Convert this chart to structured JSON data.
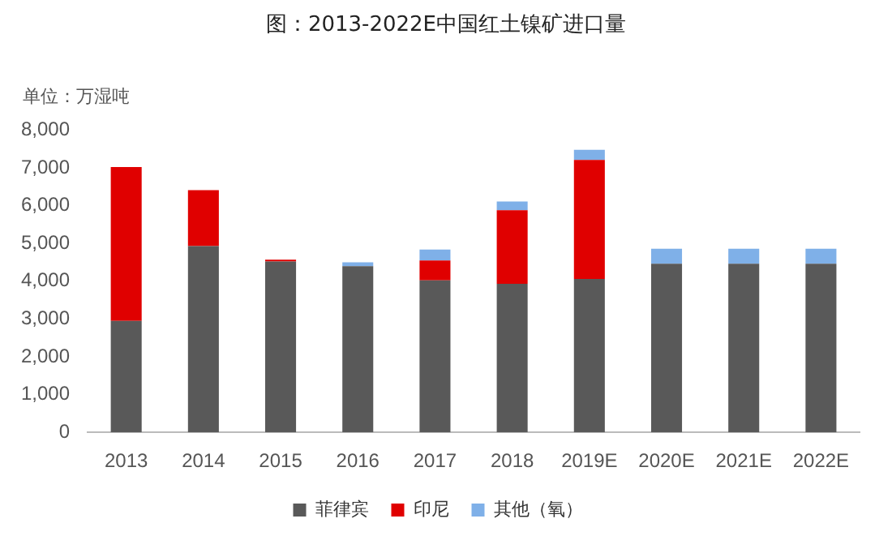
{
  "chart_data": {
    "type": "bar",
    "title": "图：2013-2022E中国红土镍矿进口量",
    "ylabel": "单位：万湿吨",
    "categories": [
      "2013",
      "2014",
      "2015",
      "2016",
      "2017",
      "2018",
      "2019E",
      "2020E",
      "2021E",
      "2022E"
    ],
    "series": [
      {
        "name": "菲律宾",
        "color": "#595959",
        "values": [
          2950,
          4930,
          4520,
          4400,
          4020,
          3930,
          4060,
          4460,
          4460,
          4460
        ]
      },
      {
        "name": "印尼",
        "color": "#e00000",
        "values": [
          4070,
          1480,
          50,
          0,
          530,
          1950,
          3150,
          0,
          0,
          0
        ]
      },
      {
        "name": "其他（氧）",
        "color": "#7fb0e8",
        "values": [
          0,
          0,
          0,
          100,
          290,
          230,
          270,
          400,
          400,
          400
        ]
      }
    ],
    "stacked": true,
    "ylim": [
      0,
      8000
    ],
    "yticks": [
      0,
      {
        "value": 1000,
        "label": "1,000"
      },
      {
        "value": 2000,
        "label": "2,000"
      },
      {
        "value": 3000,
        "label": "3,000"
      },
      {
        "value": 4000,
        "label": "4,000"
      },
      {
        "value": 5000,
        "label": "5,000"
      },
      {
        "value": 6000,
        "label": "6,000"
      },
      {
        "value": 7000,
        "label": "7,000"
      },
      {
        "value": 8000,
        "label": "8,000"
      }
    ],
    "grid": false,
    "legend": "bottom"
  }
}
